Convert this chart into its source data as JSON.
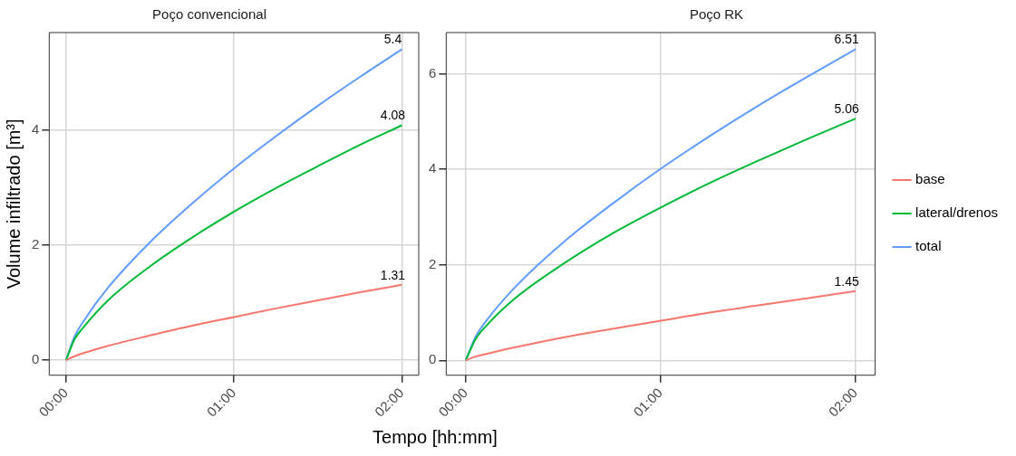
{
  "chart_data": [
    {
      "type": "line",
      "title": "Poço convencional",
      "xlabel": "Tempo [hh:mm]",
      "ylabel": "Volume infiltrado [m³]",
      "x": [
        0,
        0.05,
        0.1,
        0.25,
        0.5,
        0.75,
        1,
        1.25,
        1.5,
        1.75,
        2
      ],
      "xlim": [
        -0.1,
        2.1
      ],
      "xticks": [
        {
          "value": 0,
          "label": "00:00"
        },
        {
          "value": 1,
          "label": "01:00"
        },
        {
          "value": 2,
          "label": "02:00"
        }
      ],
      "ylim": [
        -0.26,
        5.69
      ],
      "yticks": [
        0,
        2,
        4
      ],
      "grid": true,
      "legend": false,
      "marker": "none",
      "line_style": "solid",
      "series": [
        {
          "color": "#f8766d",
          "values": [
            0,
            0.07,
            0.12,
            0.25,
            0.43,
            0.6,
            0.75,
            0.9,
            1.04,
            1.18,
            1.31
          ],
          "value_labels": [
            null,
            null,
            null,
            null,
            null,
            null,
            null,
            null,
            null,
            null,
            "1.31"
          ]
        },
        {
          "color": "#00ba38",
          "values": [
            0,
            0.36,
            0.56,
            1.04,
            1.63,
            2.13,
            2.58,
            2.99,
            3.37,
            3.74,
            4.08
          ],
          "value_labels": [
            null,
            null,
            null,
            null,
            null,
            null,
            null,
            null,
            null,
            null,
            "4.08"
          ]
        },
        {
          "color": "#619cff",
          "values": [
            0,
            0.41,
            0.66,
            1.26,
            2.05,
            2.72,
            3.33,
            3.89,
            4.42,
            4.92,
            5.4
          ],
          "value_labels": [
            null,
            null,
            null,
            null,
            null,
            null,
            null,
            null,
            null,
            null,
            "5.4"
          ]
        }
      ]
    },
    {
      "type": "line",
      "title": "Poço RK",
      "x": [
        0,
        0.05,
        0.1,
        0.25,
        0.5,
        0.75,
        1,
        1.25,
        1.5,
        1.75,
        2
      ],
      "xlim": [
        -0.1,
        2.1
      ],
      "xticks": [
        {
          "value": 0,
          "label": "00:00"
        },
        {
          "value": 1,
          "label": "01:00"
        },
        {
          "value": 2,
          "label": "02:00"
        }
      ],
      "ylim": [
        -0.31,
        6.86
      ],
      "yticks": [
        0,
        2,
        4,
        6
      ],
      "grid": true,
      "legend": "right",
      "marker": "none",
      "line_style": "solid",
      "series": [
        {
          "name": "base",
          "color": "#f8766d",
          "values": [
            0,
            0.08,
            0.13,
            0.27,
            0.48,
            0.66,
            0.83,
            1.0,
            1.15,
            1.3,
            1.45
          ],
          "value_labels": [
            null,
            null,
            null,
            null,
            null,
            null,
            null,
            null,
            null,
            null,
            "1.45"
          ]
        },
        {
          "name": "lateral/drenos",
          "color": "#00ba38",
          "values": [
            0,
            0.44,
            0.7,
            1.29,
            2.02,
            2.65,
            3.2,
            3.71,
            4.18,
            4.63,
            5.06
          ],
          "value_labels": [
            null,
            null,
            null,
            null,
            null,
            null,
            null,
            null,
            null,
            null,
            "5.06"
          ]
        },
        {
          "name": "total",
          "color": "#619cff",
          "values": [
            0,
            0.49,
            0.8,
            1.52,
            2.47,
            3.27,
            4.01,
            4.69,
            5.33,
            5.93,
            6.51
          ],
          "value_labels": [
            null,
            null,
            null,
            null,
            null,
            null,
            null,
            null,
            null,
            null,
            "6.51"
          ]
        }
      ]
    }
  ]
}
